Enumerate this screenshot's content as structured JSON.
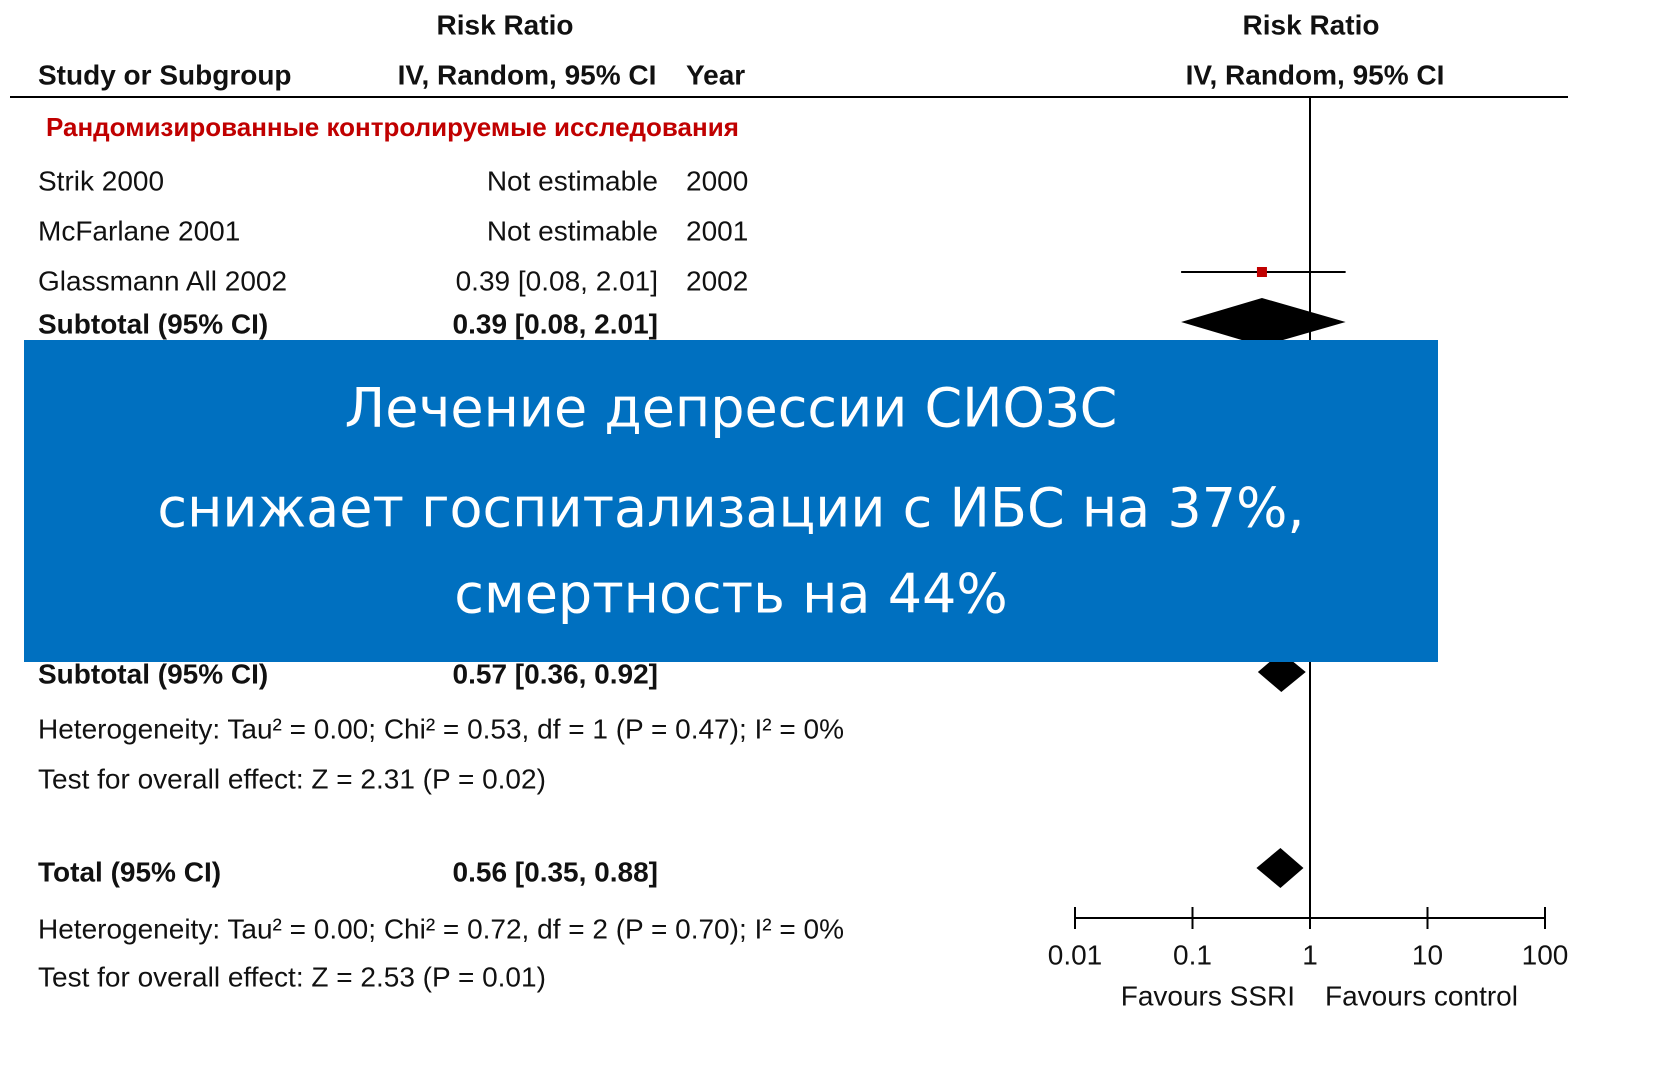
{
  "chart_data": {
    "type": "forest",
    "headers": {
      "left_top": "Risk Ratio",
      "study": "Study or Subgroup",
      "left_method": "IV, Random, 95% CI",
      "year": "Year",
      "right_top": "Risk Ratio",
      "right_method": "IV, Random, 95% CI"
    },
    "group": "Рандомизированные контролируемые исследования",
    "group_color": "#c00000",
    "rows": [
      {
        "name": "Strik 2000",
        "label": "Not estimable",
        "year": "2000"
      },
      {
        "name": "McFarlane 2001",
        "label": "Not estimable",
        "year": "2001"
      },
      {
        "name": "Glassmann All 2002",
        "label": "0.39 [0.08, 2.01]",
        "year": "2002",
        "rr": 0.39,
        "ci": [
          0.08,
          2.01
        ]
      },
      {
        "name": "Subtotal (95% CI)",
        "label": "0.39 [0.08, 2.01]",
        "rr": 0.39,
        "ci": [
          0.08,
          2.01
        ],
        "summary": true
      },
      {
        "name": "Subtotal (95% CI)",
        "label": "0.57 [0.36, 0.92]",
        "rr": 0.57,
        "ci": [
          0.36,
          0.92
        ],
        "summary": true
      },
      {
        "name": "Total (95% CI)",
        "label": "0.56 [0.35, 0.88]",
        "rr": 0.56,
        "ci": [
          0.35,
          0.88
        ],
        "summary": true
      }
    ],
    "notes": [
      "Heterogeneity: Tau² = 0.00; Chi² = 0.53, df = 1 (P = 0.47); I² = 0%",
      "Test for overall effect: Z = 2.31 (P = 0.02)",
      "Heterogeneity: Tau² = 0.00; Chi² = 0.72, df = 2 (P = 0.70); I² = 0%",
      "Test for overall effect: Z = 2.53 (P = 0.01)"
    ],
    "xscale": "log",
    "xlim": [
      0.01,
      100
    ],
    "xticks": [
      0.01,
      0.1,
      1,
      10,
      100
    ],
    "xlabels": [
      "Favours SSRI",
      "Favours control"
    ],
    "marker_color": "#c00000"
  },
  "banner": {
    "color": "#0070c0",
    "lines": [
      "Лечение депрессии СИОЗС",
      "снижает госпитализации с ИБС на 37%,",
      "смертность на 44%"
    ]
  }
}
